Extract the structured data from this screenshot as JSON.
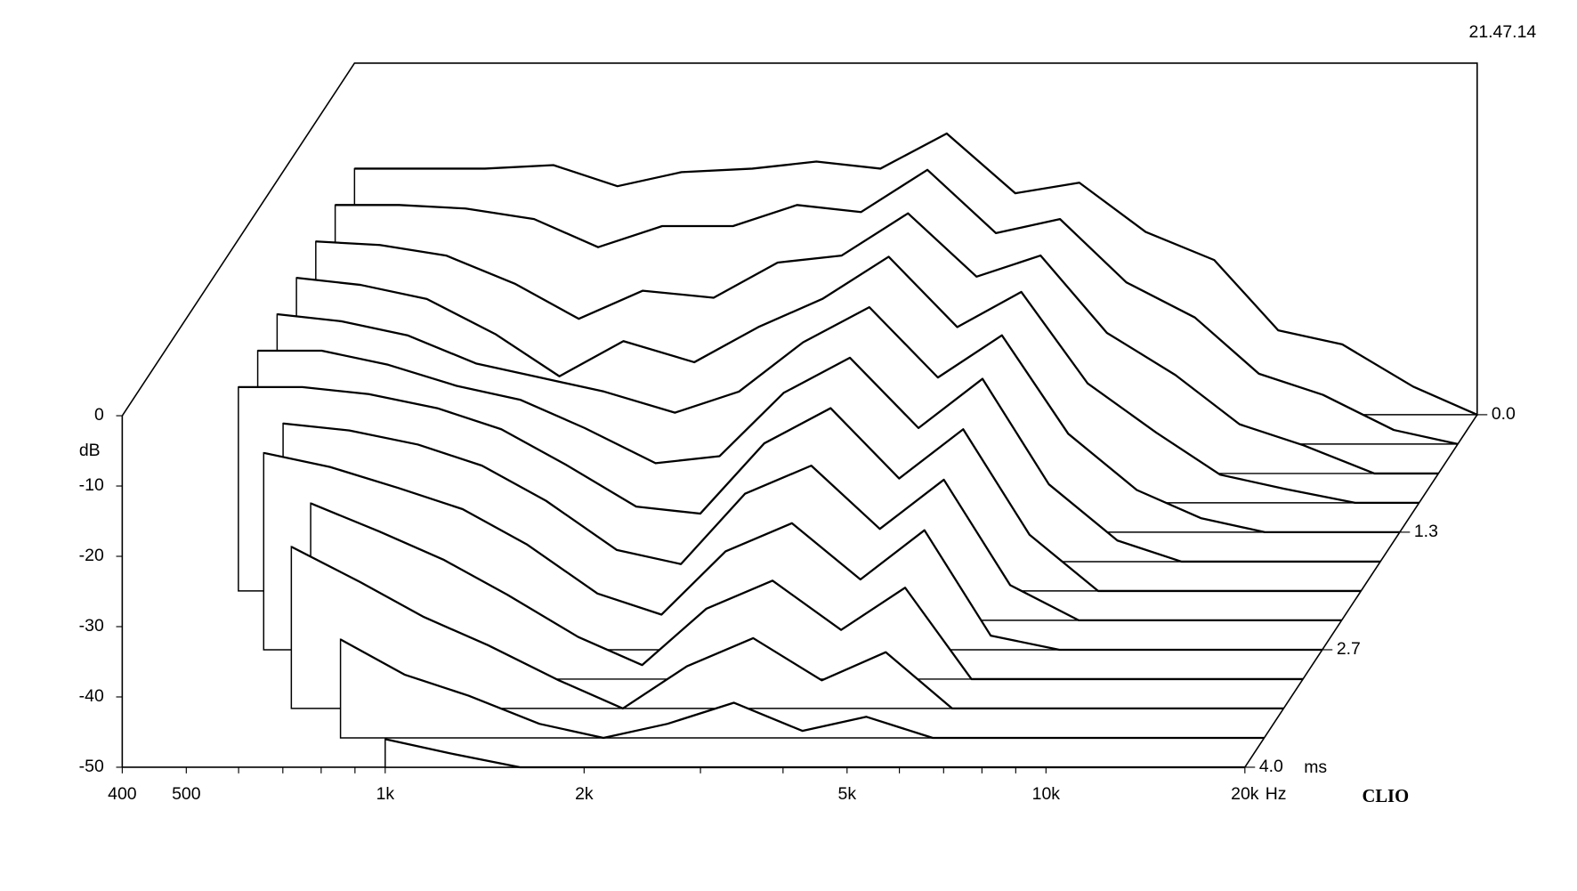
{
  "chart_data": {
    "type": "waterfall",
    "timestamp": "21.47.14",
    "watermark": "CLIO",
    "y_label": "dB",
    "x_label": "Hz",
    "z_label": "ms",
    "x": [
      400,
      500,
      630,
      800,
      1000,
      1250,
      1600,
      2000,
      2500,
      3150,
      4000,
      5000,
      6300,
      8000,
      10000,
      12500,
      16000,
      20000
    ],
    "z": [
      0,
      0.333,
      0.667,
      1,
      1.333,
      1.667,
      2,
      2.333,
      2.667,
      3,
      3.333,
      3.667,
      4
    ],
    "values": [
      [
        -15,
        -15,
        -15,
        -14.5,
        -17.5,
        -15.5,
        -15,
        -14,
        -15,
        -10,
        -18.5,
        -17,
        -24,
        -28,
        -38,
        -40,
        -46,
        -50
      ],
      [
        -16,
        -16,
        -16.5,
        -18,
        -22,
        -19,
        -19,
        -16,
        -17,
        -11,
        -20,
        -18,
        -27,
        -32,
        -40,
        -43,
        -48,
        -50
      ],
      [
        -17,
        -17.5,
        -19,
        -23,
        -28,
        -24,
        -25,
        -20,
        -19,
        -13,
        -22,
        -19,
        -30,
        -36,
        -43,
        -46,
        -50,
        -50
      ],
      [
        -18,
        -19,
        -21,
        -26,
        -32,
        -27,
        -30,
        -25,
        -21,
        -15,
        -25,
        -20,
        -33,
        -40,
        -46,
        -48,
        -50,
        -50
      ],
      [
        -19,
        -20,
        -22,
        -26,
        -28,
        -30,
        -33,
        -30,
        -23,
        -18,
        -28,
        -22,
        -36,
        -44,
        -48,
        -50,
        -50,
        -50
      ],
      [
        -20,
        -20,
        -22,
        -25,
        -27,
        -31,
        -36,
        -35,
        -26,
        -21,
        -31,
        -24,
        -39,
        -47,
        -50,
        -50,
        -50,
        -50
      ],
      [
        -21,
        -21,
        -22,
        -24,
        -27,
        -32,
        -38,
        -39,
        -29,
        -24,
        -34,
        -27,
        -42,
        -50,
        -50,
        -50,
        -50,
        -50
      ],
      [
        null,
        -22,
        -23,
        -25,
        -28,
        -33,
        -40,
        -42,
        -32,
        -28,
        -37,
        -30,
        -45,
        -50,
        -50,
        -50,
        -50,
        -50
      ],
      [
        null,
        -22,
        -24,
        -27,
        -30,
        -35,
        -42,
        -45,
        -36,
        -32,
        -40,
        -33,
        -48,
        -50,
        -50,
        -50,
        -50,
        -50
      ],
      [
        null,
        null,
        -25,
        -29,
        -33,
        -38,
        -44,
        -48,
        -40,
        -36,
        -43,
        -37,
        -50,
        -50,
        -50,
        -50,
        -50,
        -50
      ],
      [
        null,
        null,
        -27,
        -32,
        -37,
        -41,
        -46,
        -50,
        -44,
        -40,
        -46,
        -42,
        -50,
        -50,
        -50,
        -50,
        -50,
        -50
      ],
      [
        null,
        null,
        null,
        -36,
        -41,
        -44,
        -48,
        -50,
        -48,
        -45,
        -49,
        -47,
        -50,
        -50,
        -50,
        -50,
        -50,
        -50
      ],
      [
        null,
        null,
        null,
        null,
        -46,
        -48,
        -50,
        -50,
        -50,
        -50,
        -50,
        -50,
        -50,
        -50,
        -50,
        -50,
        -50,
        -50
      ]
    ],
    "color": "#000000",
    "fill": "#ffffff",
    "log_x": true,
    "xlim": [
      400,
      20000
    ],
    "xticks": [
      400,
      500,
      {
        "value": 1000,
        "label": "1k"
      },
      {
        "value": 2000,
        "label": "2k"
      },
      {
        "value": 5000,
        "label": "5k"
      },
      {
        "value": 10000,
        "label": "10k"
      },
      {
        "value": 20000,
        "label": "20k"
      }
    ],
    "xminorticks": [
      600,
      700,
      800,
      900,
      3000,
      4000,
      6000,
      7000,
      8000,
      9000
    ],
    "ylim": [
      -50,
      0
    ],
    "yticks": [
      0,
      -10,
      -20,
      -30,
      -40,
      -50
    ],
    "zlim": [
      0,
      4
    ],
    "zticks": [
      {
        "value": 0,
        "label": "0.0"
      },
      {
        "value": 1.333,
        "label": "1.3"
      },
      {
        "value": 2.667,
        "label": "2.7"
      },
      {
        "value": 4,
        "label": "4.0"
      }
    ]
  }
}
